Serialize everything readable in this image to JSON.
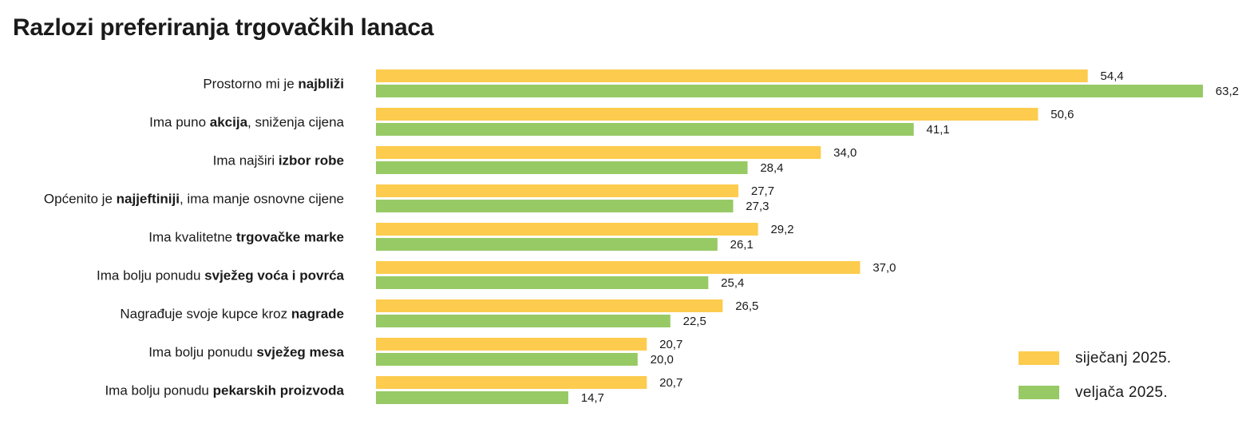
{
  "title": "Razlozi preferiranja trgovačkih lanaca",
  "chart_data": {
    "type": "bar",
    "orientation": "horizontal",
    "title": "Razlozi preferiranja trgovačkih lanaca",
    "xlabel": "",
    "ylabel": "",
    "xlim": [
      0,
      63.2
    ],
    "grid": false,
    "legend_position": "bottom-right",
    "categories": [
      {
        "parts": [
          {
            "t": "Prostorno mi je ",
            "b": false
          },
          {
            "t": "najbliži",
            "b": true
          }
        ]
      },
      {
        "parts": [
          {
            "t": "Ima puno ",
            "b": false
          },
          {
            "t": "akcija",
            "b": true
          },
          {
            "t": ", sniženja cijena",
            "b": false
          }
        ]
      },
      {
        "parts": [
          {
            "t": "Ima najširi ",
            "b": false
          },
          {
            "t": "izbor robe",
            "b": true
          }
        ]
      },
      {
        "parts": [
          {
            "t": "Općenito je ",
            "b": false
          },
          {
            "t": "najjeftiniji",
            "b": true
          },
          {
            "t": ", ima manje osnovne cijene",
            "b": false
          }
        ]
      },
      {
        "parts": [
          {
            "t": "Ima kvalitetne ",
            "b": false
          },
          {
            "t": "trgovačke marke",
            "b": true
          }
        ]
      },
      {
        "parts": [
          {
            "t": "Ima bolju ponudu ",
            "b": false
          },
          {
            "t": "svježeg voća i povrća",
            "b": true
          }
        ]
      },
      {
        "parts": [
          {
            "t": "Nagrađuje svoje kupce kroz ",
            "b": false
          },
          {
            "t": "nagrade",
            "b": true
          }
        ]
      },
      {
        "parts": [
          {
            "t": "Ima bolju ponudu ",
            "b": false
          },
          {
            "t": "svježeg mesa",
            "b": true
          }
        ]
      },
      {
        "parts": [
          {
            "t": "Ima bolju ponudu ",
            "b": false
          },
          {
            "t": "pekarskih proizvoda",
            "b": true
          }
        ]
      }
    ],
    "series": [
      {
        "name": "siječanj 2025.",
        "color": "#FDCC4E",
        "values": [
          54.4,
          50.6,
          34.0,
          27.7,
          29.2,
          37.0,
          26.5,
          20.7,
          20.7
        ],
        "labels": [
          "54,4",
          "50,6",
          "34,0",
          "27,7",
          "29,2",
          "37,0",
          "26,5",
          "20,7",
          "20,7"
        ]
      },
      {
        "name": "veljača 2025.",
        "color": "#97CA65",
        "values": [
          63.2,
          41.1,
          28.4,
          27.3,
          26.1,
          25.4,
          22.5,
          20.0,
          14.7
        ],
        "labels": [
          "63,2",
          "41,1",
          "28,4",
          "27,3",
          "26,1",
          "25,4",
          "22,5",
          "20,0",
          "14,7"
        ]
      }
    ]
  }
}
